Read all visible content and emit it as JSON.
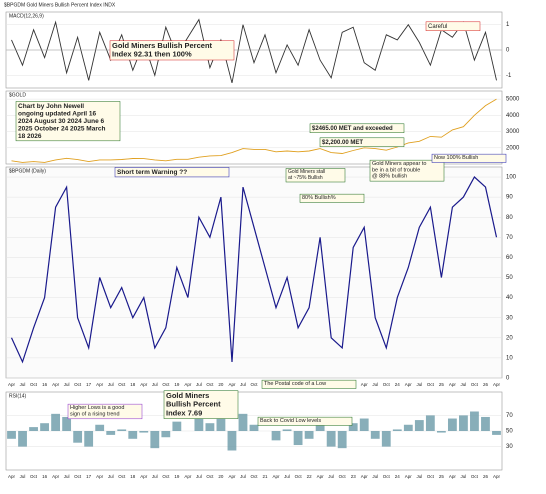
{
  "header": {
    "title": "$BPGDM Gold Miners Bullish Percent Index INDX"
  },
  "chart_data": [
    {
      "type": "line",
      "label": "MACD(12,26,9)",
      "color": "#333333",
      "ylim": [
        -1.5,
        1.5
      ],
      "yticks": [
        -1,
        0,
        1
      ],
      "values": [
        0.4,
        -0.6,
        0.8,
        -0.3,
        1.1,
        -0.9,
        0.5,
        -1.2,
        0.7,
        -0.4,
        0.6,
        -0.8,
        0.3,
        -1.0,
        0.9,
        -0.2,
        0.5,
        1.2,
        -0.7,
        0.4,
        -1.3,
        1.0,
        -0.5,
        0.6,
        -0.9,
        0.2,
        -0.6,
        0.8,
        -0.4,
        -1.1,
        0.7,
        0.9,
        -0.5,
        -0.8,
        0.6,
        0.4,
        1.0,
        0.3,
        -0.6,
        0.8,
        0.5,
        1.1,
        -0.4,
        0.7,
        -1.2
      ]
    },
    {
      "type": "line",
      "label": "$GOLD",
      "color": "#e0a020",
      "ylim": [
        1000,
        5500
      ],
      "yticks": [
        2000,
        3000,
        4000,
        5000
      ],
      "values": [
        1200,
        1100,
        1150,
        1100,
        1250,
        1350,
        1270,
        1150,
        1250,
        1250,
        1280,
        1340,
        1330,
        1250,
        1200,
        1290,
        1290,
        1420,
        1500,
        1520,
        1700,
        1950,
        1900,
        1900,
        1750,
        1800,
        1750,
        1800,
        1950,
        1700,
        1650,
        1830,
        2000,
        1950,
        1850,
        2050,
        2300,
        2400,
        2700,
        2650,
        3100,
        3300,
        4000,
        4600,
        5000
      ]
    },
    {
      "type": "line",
      "label": "$BPGDM (Daily)",
      "color": "#1a1a8c",
      "ylim": [
        0,
        105
      ],
      "yticks": [
        0,
        10,
        20,
        30,
        40,
        50,
        60,
        70,
        80,
        90,
        100
      ],
      "categories": [
        "Apr",
        "Jul",
        "Oct",
        "16",
        "Apr",
        "Jul",
        "Oct",
        "17",
        "Apr",
        "Jul",
        "Oct",
        "18",
        "Apr",
        "Jul",
        "Oct",
        "19",
        "Apr",
        "Jul",
        "Oct",
        "20",
        "Apr",
        "Jul",
        "Oct",
        "21",
        "Apr",
        "Jul",
        "Oct",
        "22",
        "Apr",
        "Jul",
        "Oct",
        "23",
        "Apr",
        "Jul",
        "Oct",
        "24",
        "Apr",
        "Jul",
        "Oct",
        "25",
        "Apr",
        "Jul",
        "Oct",
        "26",
        "Apr"
      ],
      "values": [
        20,
        8,
        25,
        40,
        85,
        95,
        30,
        15,
        50,
        35,
        45,
        30,
        40,
        15,
        25,
        55,
        40,
        80,
        70,
        90,
        8,
        95,
        75,
        55,
        35,
        50,
        25,
        35,
        70,
        20,
        15,
        65,
        75,
        30,
        15,
        40,
        55,
        75,
        85,
        50,
        85,
        90,
        100,
        95,
        70
      ],
      "annotations": [
        "Gold Miners Bullish Percent Index 92.31 then 100%",
        "Careful",
        "Chart by John Newell ongoing updated April 16 2024 August 30 2024 June 6 2025 October 24 2025 March 18 2026",
        "$2465.00 MET and exceeded",
        "$2,200.00 MET",
        "Short term Warning ??",
        "Gold Miners stall at ~75% Bullish",
        "Gold Miners appear to be in a bit of trouble @ 88% bullish",
        "Now 100% Bullish",
        "80% Bullish%",
        "The Postal code of a Low",
        "Back to Covid Low levels",
        "Gold Miners Bullish Percent Index 7.69",
        "Higher Lows is a good sign of a rising trend"
      ]
    },
    {
      "type": "bar",
      "label": "RSI(14)",
      "color": "#6a9aa8",
      "ylim": [
        0,
        100
      ],
      "yticks": [
        30,
        50,
        70
      ],
      "values": [
        40,
        30,
        55,
        60,
        72,
        68,
        35,
        30,
        58,
        45,
        52,
        40,
        48,
        28,
        42,
        62,
        50,
        66,
        60,
        70,
        25,
        72,
        58,
        50,
        38,
        52,
        32,
        40,
        64,
        30,
        28,
        60,
        66,
        40,
        30,
        52,
        58,
        64,
        70,
        48,
        66,
        70,
        75,
        68,
        45
      ]
    }
  ]
}
